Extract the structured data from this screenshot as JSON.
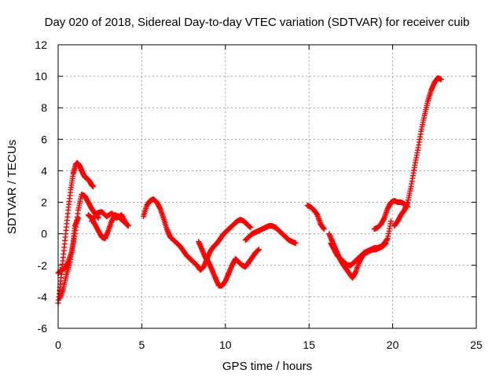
{
  "chart_data": {
    "type": "scatter",
    "title": "Day 020 of 2018, Sidereal Day-to-day VTEC variation (SDTVAR) for receiver cuib",
    "xlabel": "GPS time / hours",
    "ylabel": "SDTVAR / TECUs",
    "xlim": [
      0,
      25
    ],
    "ylim": [
      -6,
      12
    ],
    "x_ticks": [
      0,
      5,
      10,
      15,
      20,
      25
    ],
    "x_tick_labels": [
      "0",
      "5",
      "10",
      "15",
      "20",
      "25"
    ],
    "y_ticks": [
      -6,
      -4,
      -2,
      0,
      2,
      4,
      6,
      8,
      10,
      12
    ],
    "y_tick_labels": [
      "-6",
      "-4",
      "-2",
      "0",
      "2",
      "4",
      "6",
      "8",
      "10",
      "12"
    ],
    "grid": true,
    "marker": "plus",
    "series": [
      {
        "name": "SDTVAR",
        "color": "#ff0000",
        "tracks": [
          {
            "x": [
              0.0,
              0.15,
              0.3,
              0.45,
              0.6,
              0.75,
              0.9,
              1.05,
              1.15,
              1.3,
              1.45,
              1.6,
              1.75,
              1.9,
              2.0,
              2.1
            ],
            "y": [
              -4.4,
              -3.0,
              -1.5,
              0.0,
              1.5,
              2.8,
              3.8,
              4.4,
              4.5,
              4.3,
              3.9,
              3.6,
              3.5,
              3.3,
              3.1,
              3.0
            ]
          },
          {
            "x": [
              0.0,
              0.2,
              0.4,
              0.6,
              0.8,
              1.0,
              1.2,
              1.4,
              1.6,
              1.8,
              2.0,
              2.2,
              2.4
            ],
            "y": [
              -2.5,
              -2.3,
              -2.2,
              -1.8,
              -1.2,
              0.0,
              1.5,
              2.5,
              2.4,
              2.0,
              1.6,
              1.3,
              1.0
            ]
          },
          {
            "x": [
              0.1,
              0.3,
              0.5,
              0.7,
              0.9,
              1.0,
              1.2
            ],
            "y": [
              -4.1,
              -3.5,
              -2.6,
              -1.8,
              -0.6,
              0.5,
              1.0
            ]
          },
          {
            "x": [
              1.8,
              2.0,
              2.2,
              2.4,
              2.6,
              2.8,
              3.0,
              3.2,
              3.4,
              3.6,
              3.8,
              4.0,
              4.2
            ],
            "y": [
              1.2,
              1.0,
              0.6,
              0.2,
              -0.2,
              -0.3,
              0.2,
              0.8,
              1.2,
              1.1,
              0.9,
              0.7,
              0.5
            ]
          },
          {
            "x": [
              2.0,
              2.3,
              2.6,
              2.9,
              3.2,
              3.5,
              3.8,
              4.1
            ],
            "y": [
              0.8,
              1.3,
              1.4,
              1.1,
              1.3,
              1.0,
              1.2,
              0.6
            ]
          },
          {
            "x": [
              5.1,
              5.3,
              5.5,
              5.7,
              5.9,
              6.1,
              6.3,
              6.5,
              6.7,
              6.9,
              7.1,
              7.3,
              7.5,
              7.7,
              7.9,
              8.1,
              8.3,
              8.5,
              8.7,
              8.9,
              9.1,
              9.3,
              9.5,
              9.7,
              9.9,
              10.1,
              10.3,
              10.5,
              10.7,
              10.9,
              11.1,
              11.3,
              11.5
            ],
            "y": [
              1.1,
              1.8,
              2.1,
              2.2,
              2.0,
              1.6,
              1.0,
              0.3,
              -0.2,
              -0.4,
              -0.6,
              -0.8,
              -1.1,
              -1.4,
              -1.6,
              -1.8,
              -2.0,
              -2.3,
              -2.1,
              -1.6,
              -1.1,
              -0.8,
              -0.6,
              -0.3,
              0.0,
              0.2,
              0.4,
              0.6,
              0.8,
              0.9,
              0.8,
              0.6,
              0.4
            ]
          },
          {
            "x": [
              8.4,
              8.6,
              8.8,
              9.0,
              9.2,
              9.4,
              9.6,
              9.8,
              10.0,
              10.2,
              10.4,
              10.6,
              10.8,
              11.0,
              11.2,
              11.4,
              11.6,
              11.8,
              12.0
            ],
            "y": [
              -0.5,
              -1.0,
              -1.5,
              -1.8,
              -2.3,
              -2.8,
              -3.3,
              -3.3,
              -3.0,
              -2.5,
              -2.0,
              -1.6,
              -1.8,
              -2.0,
              -2.1,
              -1.8,
              -1.5,
              -1.2,
              -1.0
            ]
          },
          {
            "x": [
              11.2,
              11.4,
              11.6,
              11.8,
              12.0,
              12.2,
              12.4,
              12.6,
              12.8,
              13.0,
              13.2,
              13.4,
              13.6,
              13.8,
              14.0,
              14.2
            ],
            "y": [
              -0.4,
              -0.2,
              0.0,
              0.1,
              0.2,
              0.3,
              0.4,
              0.5,
              0.5,
              0.4,
              0.2,
              0.0,
              -0.2,
              -0.4,
              -0.5,
              -0.6
            ]
          },
          {
            "x": [
              14.9,
              15.1,
              15.3,
              15.5,
              15.7,
              15.9
            ],
            "y": [
              1.8,
              1.7,
              1.5,
              1.2,
              0.6,
              0.3
            ]
          },
          {
            "x": [
              16.2,
              16.4,
              16.6,
              16.8,
              17.0,
              17.2,
              17.4,
              17.6,
              17.8,
              18.0,
              18.2,
              18.4,
              18.6,
              18.8,
              19.0,
              19.2,
              19.4,
              19.6
            ],
            "y": [
              0.0,
              -0.5,
              -1.0,
              -1.5,
              -1.9,
              -2.2,
              -2.5,
              -2.8,
              -2.4,
              -1.8,
              -1.4,
              -1.2,
              -1.1,
              -1.0,
              -1.0,
              -0.9,
              -0.8,
              -0.6
            ]
          },
          {
            "x": [
              16.3,
              16.5,
              16.7,
              16.9,
              17.1,
              17.3,
              17.5,
              17.7,
              17.9,
              18.1,
              18.3,
              18.5,
              18.7,
              18.9,
              19.1,
              19.3,
              19.5,
              19.7,
              19.9
            ],
            "y": [
              -0.6,
              -1.0,
              -1.4,
              -1.6,
              -1.8,
              -2.0,
              -2.0,
              -1.8,
              -1.6,
              -1.4,
              -1.2,
              -1.1,
              -1.0,
              -0.9,
              -0.9,
              -0.8,
              -0.6,
              -0.3,
              0.8
            ]
          },
          {
            "x": [
              18.9,
              19.1,
              19.3,
              19.5,
              19.7,
              19.9,
              20.1,
              20.3,
              20.5,
              20.7,
              20.9
            ],
            "y": [
              0.3,
              0.4,
              0.6,
              1.0,
              1.6,
              2.0,
              2.1,
              2.0,
              2.0,
              1.9,
              1.7
            ]
          },
          {
            "x": [
              20.1,
              20.3,
              20.5,
              20.7,
              20.9,
              21.1,
              21.3,
              21.5,
              21.7,
              21.9,
              22.1,
              22.3,
              22.5,
              22.7,
              22.9
            ],
            "y": [
              0.5,
              0.8,
              1.2,
              1.5,
              2.0,
              3.0,
              4.2,
              5.3,
              6.5,
              7.5,
              8.4,
              9.1,
              9.6,
              9.9,
              9.8
            ]
          }
        ]
      }
    ]
  }
}
